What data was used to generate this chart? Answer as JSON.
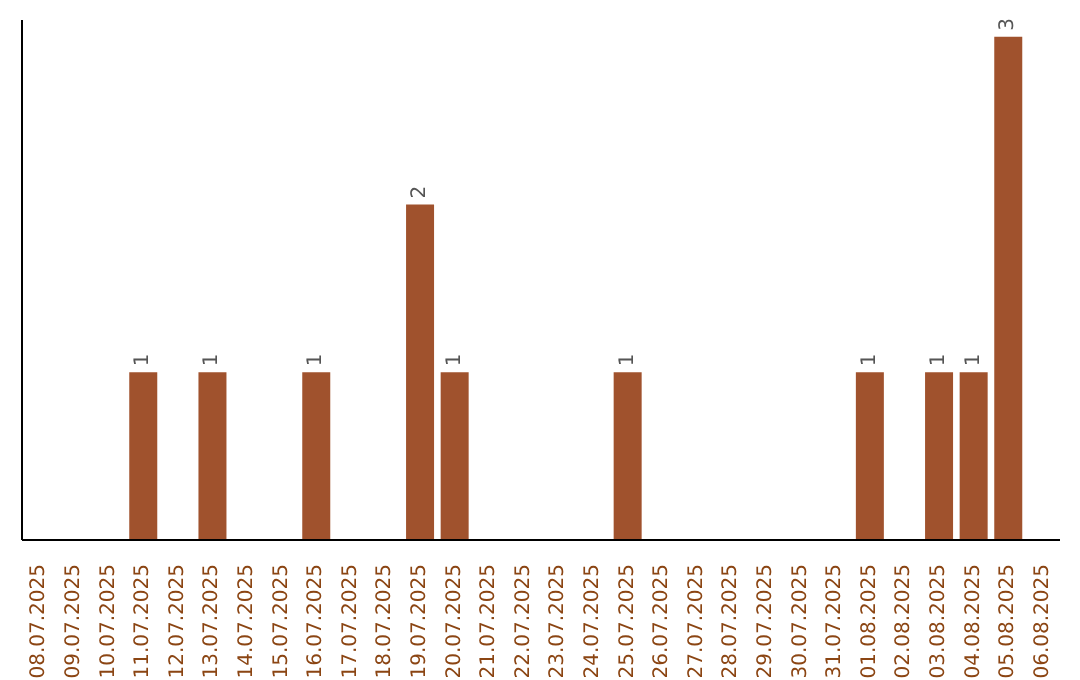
{
  "chart_data": {
    "type": "bar",
    "categories": [
      "08.07.2025",
      "09.07.2025",
      "10.07.2025",
      "11.07.2025",
      "12.07.2025",
      "13.07.2025",
      "14.07.2025",
      "15.07.2025",
      "16.07.2025",
      "17.07.2025",
      "18.07.2025",
      "19.07.2025",
      "20.07.2025",
      "21.07.2025",
      "22.07.2025",
      "23.07.2025",
      "24.07.2025",
      "25.07.2025",
      "26.07.2025",
      "27.07.2025",
      "28.07.2025",
      "29.07.2025",
      "30.07.2025",
      "31.07.2025",
      "01.08.2025",
      "02.08.2025",
      "03.08.2025",
      "04.08.2025",
      "05.08.2025",
      "06.08.2025"
    ],
    "values": [
      0,
      0,
      0,
      1,
      0,
      1,
      0,
      0,
      1,
      0,
      0,
      2,
      1,
      0,
      0,
      0,
      0,
      1,
      0,
      0,
      0,
      0,
      0,
      0,
      1,
      0,
      1,
      1,
      3,
      0
    ],
    "value_labels": [
      null,
      null,
      null,
      "1",
      null,
      "1",
      null,
      null,
      "1",
      null,
      null,
      "2",
      "1",
      null,
      null,
      null,
      null,
      "1",
      null,
      null,
      null,
      null,
      null,
      null,
      "1",
      null,
      "1",
      "1",
      "3",
      null
    ],
    "color": "#a0522d",
    "ylim": [
      0,
      3.1
    ],
    "grid": false,
    "legend": false
  }
}
